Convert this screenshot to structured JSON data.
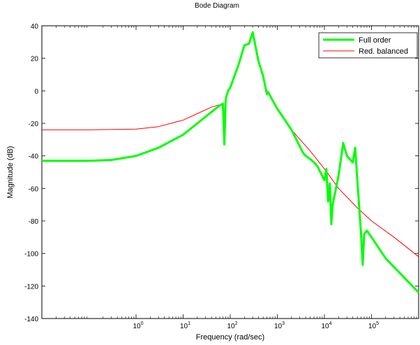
{
  "chart_data": {
    "type": "line",
    "title": "Bode Diagram",
    "xlabel": "Frequency  (rad/sec)",
    "ylabel": "Magnitude (dB)",
    "x_scale": "log",
    "xlim": [
      0.01,
      1000000
    ],
    "ylim": [
      -140,
      40
    ],
    "x_ticks": [
      {
        "value": 1,
        "base": "10",
        "exp": "0"
      },
      {
        "value": 10,
        "base": "10",
        "exp": "1"
      },
      {
        "value": 100,
        "base": "10",
        "exp": "2"
      },
      {
        "value": 1000,
        "base": "10",
        "exp": "3"
      },
      {
        "value": 10000,
        "base": "10",
        "exp": "4"
      },
      {
        "value": 100000,
        "base": "10",
        "exp": "5"
      }
    ],
    "y_ticks": [
      40,
      20,
      0,
      -20,
      -40,
      -60,
      -80,
      -100,
      -120,
      -140
    ],
    "grid": false,
    "legend_position": "top-right",
    "series": [
      {
        "name": "Red. balanced",
        "color": "#ff0000",
        "line_width": 1,
        "x": [
          0.01,
          0.1,
          1,
          3,
          10,
          20,
          40,
          60,
          70,
          75,
          80,
          90,
          100,
          150,
          200,
          250,
          300,
          400,
          500,
          600,
          650,
          700,
          1000,
          2000,
          5000,
          10000,
          20000,
          50000,
          100000,
          300000,
          1000000
        ],
        "y": [
          -24,
          -24,
          -23.5,
          -22,
          -18,
          -14,
          -10,
          -8.5,
          -9,
          -31,
          -5,
          0,
          2,
          16,
          28,
          29,
          36,
          18,
          9,
          0,
          -1,
          -3,
          -11,
          -24,
          -37,
          -48,
          -60,
          -72,
          -80,
          -90,
          -102
        ]
      },
      {
        "name": "Full order",
        "color": "#00ff00",
        "line_width": 3,
        "x": [
          0.01,
          0.1,
          0.3,
          1,
          3,
          10,
          20,
          40,
          60,
          70,
          75,
          80,
          90,
          100,
          150,
          200,
          250,
          300,
          400,
          500,
          600,
          650,
          700,
          1000,
          2000,
          3500,
          4000,
          5000,
          6000,
          7000,
          10000,
          11000,
          12000,
          13000,
          14000,
          15000,
          20000,
          25000,
          30000,
          40000,
          45000,
          50000,
          60000,
          65000,
          70000,
          80000,
          100000,
          200000,
          500000,
          1000000
        ],
        "y": [
          -43,
          -43,
          -42.5,
          -40,
          -35,
          -27,
          -20,
          -13,
          -9,
          -8,
          -33,
          -5,
          0,
          2,
          16,
          28,
          29,
          36,
          18,
          9,
          -2,
          -1,
          -3,
          -11,
          -24,
          -38,
          -40,
          -42,
          -44,
          -46,
          -55,
          -48,
          -68,
          -57,
          -82,
          -70,
          -52,
          -32,
          -40,
          -44,
          -35,
          -55,
          -88,
          -107,
          -88,
          -86,
          -90,
          -103,
          -115,
          -124
        ]
      }
    ]
  }
}
